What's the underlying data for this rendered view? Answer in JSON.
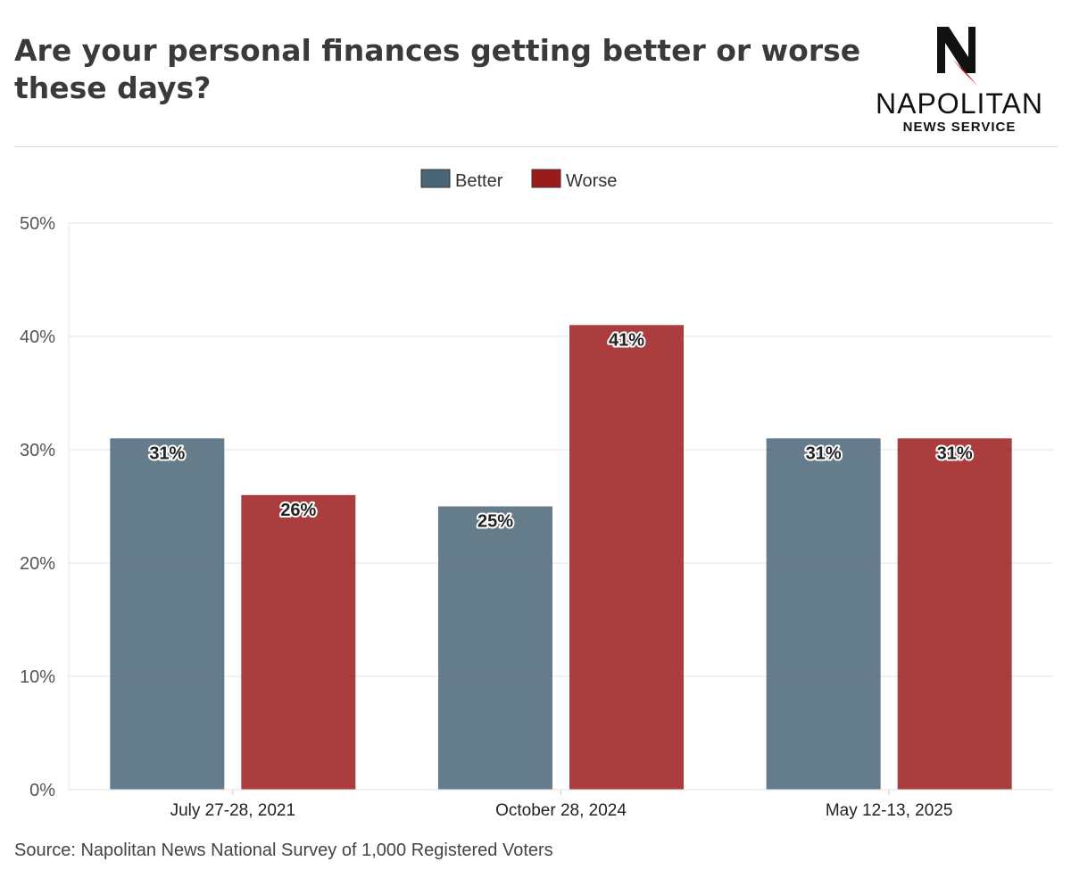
{
  "header": {
    "title": "Are your personal finances getting better or worse these days?",
    "logo_word": "NAPOLITAN",
    "logo_sub": "NEWS SERVICE"
  },
  "footer": {
    "source": "Source: Napolitan News National Survey of 1,000 Registered Voters"
  },
  "colors": {
    "better": "#4a6577",
    "worse": "#9b1b1b",
    "logo_red": "#d0202a"
  },
  "chart_data": {
    "type": "bar",
    "categories": [
      "July 27-28, 2021",
      "October 28, 2024",
      "May 12-13, 2025"
    ],
    "series": [
      {
        "name": "Better",
        "values": [
          31,
          25,
          31
        ],
        "color": "#4a6577"
      },
      {
        "name": "Worse",
        "values": [
          26,
          41,
          31
        ],
        "color": "#9b1b1b"
      }
    ],
    "ylim": [
      0,
      50
    ],
    "yticks": [
      "0%",
      "10%",
      "20%",
      "30%",
      "40%",
      "50%"
    ],
    "ytick_values": [
      0,
      10,
      20,
      30,
      40,
      50
    ],
    "value_suffix": "%",
    "legend_position": "top-center",
    "grid": true
  }
}
